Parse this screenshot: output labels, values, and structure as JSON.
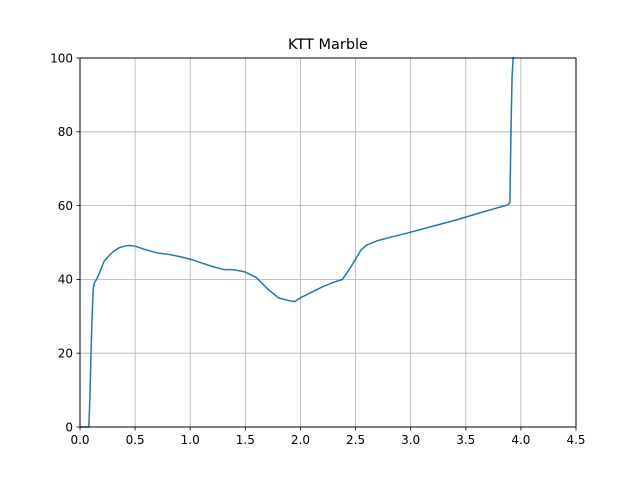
{
  "chart_data": {
    "type": "line",
    "title": "KTT Marble",
    "xlabel": "",
    "ylabel": "",
    "xlim": [
      0,
      4.5
    ],
    "ylim": [
      0,
      100
    ],
    "xticks": [
      0,
      0.5,
      1.0,
      1.5,
      2.0,
      2.5,
      3.0,
      3.5,
      4.0,
      4.5
    ],
    "xtick_labels": [
      "0.0",
      "0.5",
      "1.0",
      "1.5",
      "2.0",
      "2.5",
      "3.0",
      "3.5",
      "4.0",
      "4.5"
    ],
    "yticks": [
      0,
      20,
      40,
      60,
      80,
      100
    ],
    "ytick_labels": [
      "0",
      "20",
      "40",
      "60",
      "80",
      "100"
    ],
    "grid": true,
    "legend": "none",
    "series": [
      {
        "color": "#1f77b4",
        "x": [
          0.0,
          0.08,
          0.09,
          0.1,
          0.11,
          0.12,
          0.13,
          0.15,
          0.18,
          0.2,
          0.22,
          0.25,
          0.3,
          0.35,
          0.4,
          0.45,
          0.5,
          0.55,
          0.6,
          0.7,
          0.8,
          0.9,
          1.0,
          1.1,
          1.2,
          1.3,
          1.4,
          1.5,
          1.6,
          1.7,
          1.8,
          1.9,
          1.95,
          2.0,
          2.1,
          2.2,
          2.3,
          2.38,
          2.45,
          2.5,
          2.55,
          2.6,
          2.7,
          2.8,
          3.0,
          3.2,
          3.4,
          3.6,
          3.8,
          3.88,
          3.9,
          3.91,
          3.92,
          3.93
        ],
        "y": [
          0.0,
          0.0,
          8.0,
          20.0,
          30.0,
          37.5,
          39.0,
          40.0,
          42.0,
          43.5,
          45.0,
          46.0,
          47.5,
          48.5,
          49.0,
          49.2,
          49.0,
          48.5,
          48.0,
          47.2,
          46.8,
          46.2,
          45.5,
          44.5,
          43.5,
          42.7,
          42.6,
          42.0,
          40.5,
          37.5,
          35.0,
          34.2,
          34.0,
          35.0,
          36.5,
          38.0,
          39.2,
          40.0,
          43.0,
          45.5,
          48.0,
          49.3,
          50.5,
          51.3,
          52.8,
          54.4,
          56.0,
          57.8,
          59.5,
          60.2,
          60.8,
          80.0,
          95.0,
          100.0
        ]
      }
    ]
  }
}
